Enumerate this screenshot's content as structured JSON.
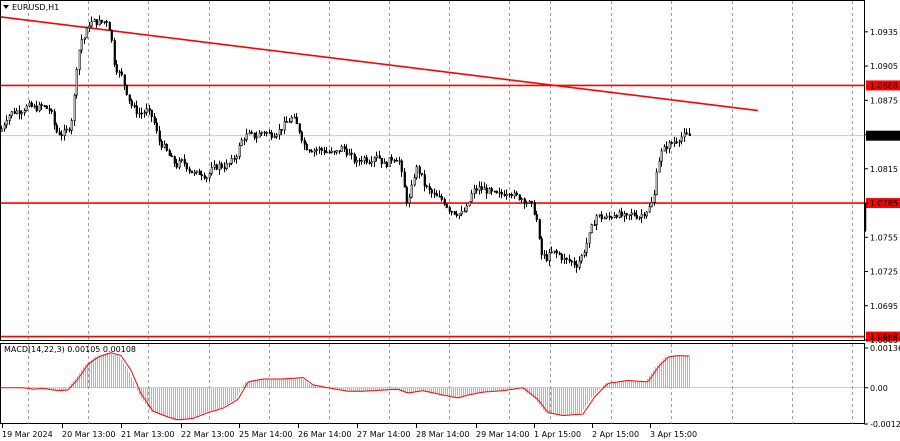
{
  "title": "EURUSD,H1",
  "macd_label": "MACD(14,22,3) 0.00105 0.00108",
  "colors": {
    "candle": "#000000",
    "level": "#ff0000",
    "grid": "#777777",
    "current": "#c8c8c8",
    "macd_hist": "#b4b4b4",
    "macd_signal": "#ff0000"
  },
  "chart_data": [
    {
      "type": "candlestick",
      "title": "EURUSD,H1",
      "ylim": [
        1.0665,
        1.0962
      ],
      "y_ticks": [
        "1.0935",
        "1.0905",
        "1.0875",
        "1.0845",
        "1.0815",
        "1.0785",
        "1.0755",
        "1.0725",
        "1.0695",
        "1.0665"
      ],
      "x_labels": [
        "19 Mar 2024",
        "20 Mar 13:00",
        "21 Mar 13:00",
        "22 Mar 13:00",
        "25 Mar 14:00",
        "26 Mar 14:00",
        "27 Mar 14:00",
        "28 Mar 14:00",
        "29 Mar 14:00",
        "1 Apr 15:00",
        "2 Apr 15:00",
        "3 Apr 15:00"
      ],
      "horizontal_levels": [
        {
          "value": 1.0888,
          "label": "1.0888"
        },
        {
          "value": 1.0785,
          "label": "1.0785"
        },
        {
          "value": 1.0668,
          "label": "1.0668"
        }
      ],
      "current_price": {
        "value": 1.0844,
        "label": "1.0844"
      },
      "trendline": {
        "from": {
          "x": "19 Mar 2024",
          "y": 1.0948
        },
        "to": {
          "x": "3 Apr 15:00 (+26h)",
          "y": 1.0866
        }
      },
      "close_path": [
        [
          0,
          1.0848
        ],
        [
          6,
          1.086
        ],
        [
          12,
          1.0865
        ],
        [
          20,
          1.0866
        ],
        [
          28,
          1.087
        ],
        [
          35,
          1.0868
        ],
        [
          42,
          1.087
        ],
        [
          50,
          1.0866
        ],
        [
          55,
          1.0848
        ],
        [
          62,
          1.0845
        ],
        [
          68,
          1.085
        ],
        [
          72,
          1.0862
        ],
        [
          76,
          1.0905
        ],
        [
          80,
          1.0928
        ],
        [
          84,
          1.093
        ],
        [
          88,
          1.0942
        ],
        [
          94,
          1.0944
        ],
        [
          100,
          1.0943
        ],
        [
          106,
          1.0945
        ],
        [
          110,
          1.0935
        ],
        [
          113,
          1.091
        ],
        [
          117,
          1.09
        ],
        [
          121,
          1.0896
        ],
        [
          125,
          1.0885
        ],
        [
          130,
          1.0872
        ],
        [
          135,
          1.0866
        ],
        [
          140,
          1.0863
        ],
        [
          146,
          1.0866
        ],
        [
          152,
          1.086
        ],
        [
          158,
          1.084
        ],
        [
          164,
          1.0833
        ],
        [
          170,
          1.0824
        ],
        [
          176,
          1.0818
        ],
        [
          182,
          1.0822
        ],
        [
          188,
          1.0815
        ],
        [
          194,
          1.081
        ],
        [
          200,
          1.0812
        ],
        [
          206,
          1.0808
        ],
        [
          212,
          1.0815
        ],
        [
          218,
          1.0818
        ],
        [
          224,
          1.0817
        ],
        [
          230,
          1.082
        ],
        [
          236,
          1.0828
        ],
        [
          242,
          1.0842
        ],
        [
          248,
          1.0845
        ],
        [
          255,
          1.0843
        ],
        [
          262,
          1.0848
        ],
        [
          270,
          1.0845
        ],
        [
          278,
          1.0848
        ],
        [
          285,
          1.0855
        ],
        [
          292,
          1.086
        ],
        [
          298,
          1.085
        ],
        [
          304,
          1.0835
        ],
        [
          310,
          1.0832
        ],
        [
          318,
          1.0832
        ],
        [
          326,
          1.083
        ],
        [
          334,
          1.0828
        ],
        [
          342,
          1.0834
        ],
        [
          350,
          1.0826
        ],
        [
          356,
          1.082
        ],
        [
          362,
          1.0825
        ],
        [
          368,
          1.0822
        ],
        [
          376,
          1.0828
        ],
        [
          384,
          1.0818
        ],
        [
          392,
          1.0825
        ],
        [
          398,
          1.0824
        ],
        [
          403,
          1.08
        ],
        [
          407,
          1.0783
        ],
        [
          411,
          1.0798
        ],
        [
          415,
          1.0816
        ],
        [
          419,
          1.0812
        ],
        [
          424,
          1.08
        ],
        [
          430,
          1.0794
        ],
        [
          436,
          1.079
        ],
        [
          442,
          1.0788
        ],
        [
          448,
          1.078
        ],
        [
          454,
          1.0777
        ],
        [
          460,
          1.0775
        ],
        [
          466,
          1.078
        ],
        [
          472,
          1.0795
        ],
        [
          478,
          1.0798
        ],
        [
          484,
          1.0797
        ],
        [
          490,
          1.0794
        ],
        [
          496,
          1.0792
        ],
        [
          502,
          1.0793
        ],
        [
          508,
          1.0796
        ],
        [
          514,
          1.0791
        ],
        [
          520,
          1.079
        ],
        [
          526,
          1.0786
        ],
        [
          532,
          1.0782
        ],
        [
          536,
          1.077
        ],
        [
          540,
          1.074
        ],
        [
          546,
          1.0737
        ],
        [
          552,
          1.0742
        ],
        [
          558,
          1.074
        ],
        [
          564,
          1.0735
        ],
        [
          570,
          1.0734
        ],
        [
          576,
          1.0731
        ],
        [
          582,
          1.074
        ],
        [
          588,
          1.0755
        ],
        [
          592,
          1.0766
        ],
        [
          596,
          1.0774
        ],
        [
          602,
          1.0772
        ],
        [
          608,
          1.0772
        ],
        [
          614,
          1.0776
        ],
        [
          620,
          1.0774
        ],
        [
          626,
          1.0772
        ],
        [
          632,
          1.0776
        ],
        [
          638,
          1.0773
        ],
        [
          644,
          1.0777
        ],
        [
          650,
          1.0782
        ],
        [
          654,
          1.0793
        ],
        [
          656,
          1.0815
        ],
        [
          660,
          1.0828
        ],
        [
          666,
          1.0835
        ],
        [
          672,
          1.0838
        ],
        [
          678,
          1.0842
        ],
        [
          684,
          1.0844
        ],
        [
          690,
          1.0844
        ]
      ]
    },
    {
      "type": "macd",
      "title": "MACD(14,22,3) 0.00105 0.00108",
      "ylim": [
        -0.00124,
        0.00136
      ],
      "y_ticks": [
        "0.00136",
        "0.00",
        "-0.00124"
      ],
      "path": [
        [
          0,
          0.0
        ],
        [
          20,
          0.0
        ],
        [
          30,
          -5e-05
        ],
        [
          40,
          -2e-05
        ],
        [
          55,
          -0.0001
        ],
        [
          65,
          -8e-05
        ],
        [
          75,
          0.0003
        ],
        [
          85,
          0.0008
        ],
        [
          95,
          0.00105
        ],
        [
          108,
          0.0012
        ],
        [
          118,
          0.0011
        ],
        [
          128,
          0.0006
        ],
        [
          138,
          -0.0002
        ],
        [
          150,
          -0.0008
        ],
        [
          165,
          -0.001
        ],
        [
          175,
          -0.0011
        ],
        [
          190,
          -0.00105
        ],
        [
          205,
          -0.00085
        ],
        [
          220,
          -0.0007
        ],
        [
          235,
          -0.0004
        ],
        [
          245,
          0.0002
        ],
        [
          260,
          0.0003
        ],
        [
          280,
          0.0003
        ],
        [
          300,
          0.00035
        ],
        [
          310,
          0.0001
        ],
        [
          325,
          0.0
        ],
        [
          345,
          -0.00012
        ],
        [
          360,
          -0.00012
        ],
        [
          380,
          -8e-05
        ],
        [
          395,
          -5e-05
        ],
        [
          405,
          -0.00018
        ],
        [
          420,
          -0.0001
        ],
        [
          440,
          -0.00025
        ],
        [
          455,
          -0.00035
        ],
        [
          465,
          -0.00025
        ],
        [
          480,
          -0.00015
        ],
        [
          500,
          -0.0001
        ],
        [
          520,
          0.0
        ],
        [
          535,
          -0.0004
        ],
        [
          545,
          -0.00085
        ],
        [
          560,
          -0.00095
        ],
        [
          580,
          -0.0009
        ],
        [
          592,
          -0.0003
        ],
        [
          605,
          0.00015
        ],
        [
          625,
          0.00025
        ],
        [
          645,
          0.0002
        ],
        [
          655,
          0.0007
        ],
        [
          665,
          0.00105
        ],
        [
          675,
          0.0011
        ],
        [
          690,
          0.00108
        ]
      ]
    }
  ]
}
